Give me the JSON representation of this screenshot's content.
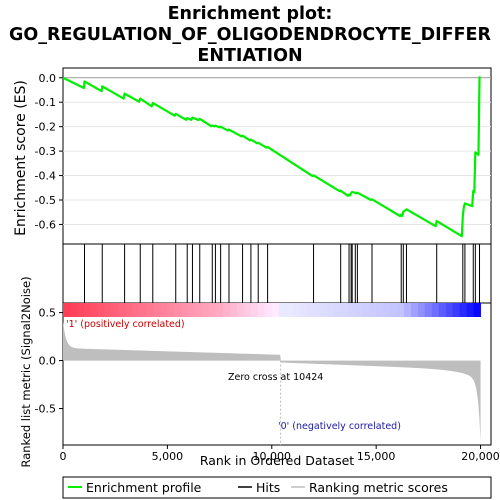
{
  "chart_data": {
    "type": "line",
    "title_lines": [
      "Enrichment plot:",
      "GO_REGULATION_OF_OLIGODENDROCYTE_DIFFER",
      "ENTIATION"
    ],
    "xlabel": "Rank in Ordered Dataset",
    "ylabel_top": "Enrichment score (ES)",
    "ylabel_bottom": "Ranked list metric (Signal2Noise)",
    "xlim": [
      0,
      20500
    ],
    "x_ticks": [
      0,
      5000,
      10000,
      15000,
      20000
    ],
    "x_tick_labels": [
      "0",
      "5,000",
      "10,000",
      "15,000",
      "20,000"
    ],
    "es_ylim": [
      -0.68,
      0.04
    ],
    "es_ticks": [
      0.0,
      -0.1,
      -0.2,
      -0.3,
      -0.4,
      -0.5,
      -0.6
    ],
    "es_tick_labels": [
      "0.0",
      "-0.1",
      "-0.2",
      "-0.3",
      "-0.4",
      "-0.5",
      "-0.6"
    ],
    "metric_ylim": [
      -0.88,
      0.6
    ],
    "metric_ticks": [
      0.5,
      0.0,
      -0.5
    ],
    "metric_tick_labels": [
      "0.5",
      "0.0",
      "-0.5"
    ],
    "total_genes": 20000,
    "zero_cross": 10424,
    "zero_cross_label": "Zero cross at 10424",
    "pos_label": "'1' (positively correlated)",
    "neg_label": "'0' (negatively correlated)",
    "hits": [
      1030,
      1880,
      2950,
      3700,
      4300,
      5400,
      5950,
      6200,
      6550,
      7150,
      7300,
      7550,
      7950,
      8600,
      9000,
      9350,
      9800,
      12000,
      13300,
      13700,
      13800,
      13850,
      14000,
      14100,
      14800,
      16200,
      16300,
      16450,
      17900,
      19150,
      19250,
      19650,
      19750,
      19950
    ],
    "es_series": {
      "name": "Enrichment profile",
      "x": [
        0,
        1000,
        1030,
        1850,
        1880,
        2900,
        2950,
        3650,
        3700,
        4250,
        4300,
        5350,
        5400,
        5900,
        5950,
        6150,
        6200,
        6500,
        6550,
        7100,
        7150,
        7250,
        7300,
        7500,
        7550,
        7900,
        7950,
        8550,
        8600,
        8950,
        9000,
        9300,
        9350,
        9750,
        9800,
        11950,
        12000,
        13250,
        13300,
        13650,
        13700,
        13750,
        13800,
        13850,
        14050,
        14100,
        14750,
        14800,
        16150,
        16200,
        16250,
        16300,
        16400,
        16450,
        17850,
        17900,
        19100,
        19150,
        19200,
        19250,
        19600,
        19650,
        19700,
        19750,
        19900,
        19950,
        20000
      ],
      "y": [
        0.0,
        -0.042,
        -0.015,
        -0.055,
        -0.035,
        -0.085,
        -0.065,
        -0.098,
        -0.085,
        -0.117,
        -0.103,
        -0.155,
        -0.148,
        -0.172,
        -0.165,
        -0.172,
        -0.163,
        -0.173,
        -0.168,
        -0.198,
        -0.195,
        -0.199,
        -0.196,
        -0.203,
        -0.2,
        -0.216,
        -0.212,
        -0.24,
        -0.237,
        -0.256,
        -0.253,
        -0.268,
        -0.266,
        -0.286,
        -0.283,
        -0.402,
        -0.399,
        -0.464,
        -0.462,
        -0.483,
        -0.478,
        -0.481,
        -0.472,
        -0.467,
        -0.472,
        -0.47,
        -0.5,
        -0.497,
        -0.566,
        -0.56,
        -0.565,
        -0.548,
        -0.542,
        -0.538,
        -0.607,
        -0.586,
        -0.648,
        -0.566,
        -0.528,
        -0.514,
        -0.525,
        -0.463,
        -0.468,
        -0.305,
        -0.315,
        0.002,
        0.002
      ]
    },
    "legend": [
      "Enrichment profile",
      "Hits",
      "Ranking metric scores"
    ],
    "colors": {
      "es_line": "#00ee00",
      "hits": "#000000",
      "metric_fill": "#bebebe",
      "pos_strong": "#ff0000",
      "neg_strong": "#0000ff"
    }
  }
}
